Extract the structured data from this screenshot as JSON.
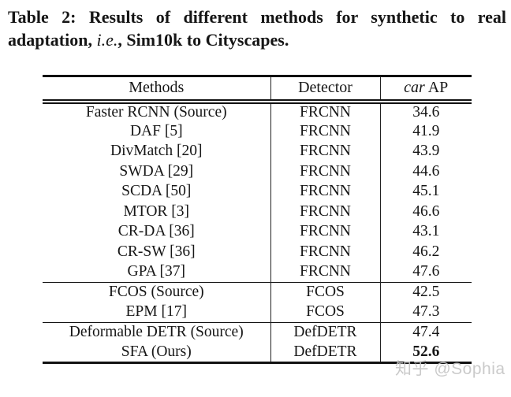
{
  "caption": {
    "line1": "Table 2: Results of different methods for synthetic to real",
    "line2_prefix": "adaptation, ",
    "line2_emph": "i.e.",
    "line2_suffix": ", Sim10k to Cityscapes."
  },
  "table": {
    "header": {
      "methods": "Methods",
      "detector": "Detector",
      "car_ap_emph": "car",
      "car_ap_rest": " AP"
    },
    "groups": [
      {
        "rows": [
          {
            "method": "Faster RCNN (Source)",
            "detector": "FRCNN",
            "ap": "34.6",
            "bold_ap": false
          },
          {
            "method": "DAF [5]",
            "detector": "FRCNN",
            "ap": "41.9",
            "bold_ap": false
          },
          {
            "method": "DivMatch [20]",
            "detector": "FRCNN",
            "ap": "43.9",
            "bold_ap": false
          },
          {
            "method": "SWDA [29]",
            "detector": "FRCNN",
            "ap": "44.6",
            "bold_ap": false
          },
          {
            "method": "SCDA [50]",
            "detector": "FRCNN",
            "ap": "45.1",
            "bold_ap": false
          },
          {
            "method": "MTOR [3]",
            "detector": "FRCNN",
            "ap": "46.6",
            "bold_ap": false
          },
          {
            "method": "CR-DA [36]",
            "detector": "FRCNN",
            "ap": "43.1",
            "bold_ap": false
          },
          {
            "method": "CR-SW [36]",
            "detector": "FRCNN",
            "ap": "46.2",
            "bold_ap": false
          },
          {
            "method": "GPA [37]",
            "detector": "FRCNN",
            "ap": "47.6",
            "bold_ap": false
          }
        ]
      },
      {
        "rows": [
          {
            "method": "FCOS (Source)",
            "detector": "FCOS",
            "ap": "42.5",
            "bold_ap": false
          },
          {
            "method": "EPM [17]",
            "detector": "FCOS",
            "ap": "47.3",
            "bold_ap": false
          }
        ]
      },
      {
        "rows": [
          {
            "method": "Deformable DETR (Source)",
            "detector": "DefDETR",
            "ap": "47.4",
            "bold_ap": false
          },
          {
            "method": "SFA (Ours)",
            "detector": "DefDETR",
            "ap": "52.6",
            "bold_ap": true
          }
        ]
      }
    ]
  },
  "watermark": {
    "text": "知乎 @Sophia"
  },
  "colors": {
    "text": "#161616",
    "rule": "#111111",
    "watermark": "#c5c5c5",
    "background": "#ffffff"
  }
}
